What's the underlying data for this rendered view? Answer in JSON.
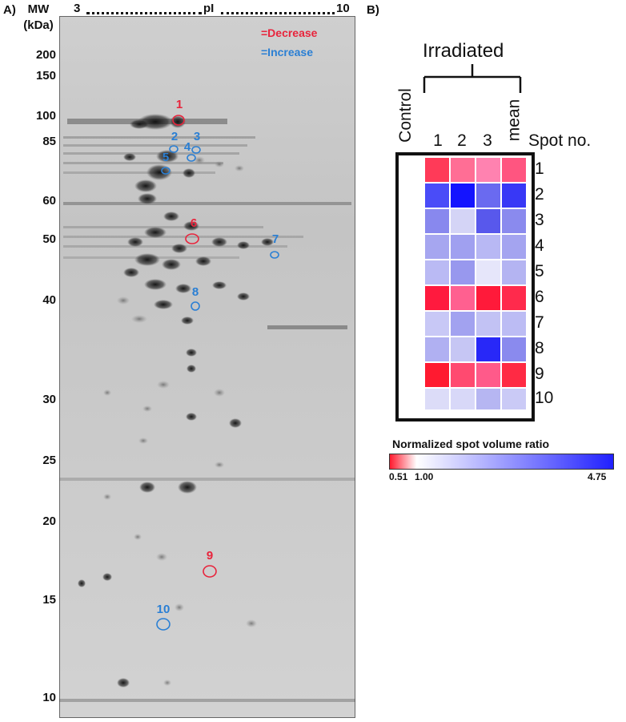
{
  "panel_a": {
    "label": "A)",
    "mw_title_line1": "MW",
    "mw_title_line2": "(kDa)",
    "mw_ticks": [
      {
        "label": "200",
        "kda": 200
      },
      {
        "label": "150",
        "kda": 150
      },
      {
        "label": "100",
        "kda": 100
      },
      {
        "label": "85",
        "kda": 85
      },
      {
        "label": "60",
        "kda": 60
      },
      {
        "label": "50",
        "kda": 50
      },
      {
        "label": "40",
        "kda": 40
      },
      {
        "label": "30",
        "kda": 30
      },
      {
        "label": "25",
        "kda": 25
      },
      {
        "label": "20",
        "kda": 20
      },
      {
        "label": "15",
        "kda": 15
      },
      {
        "label": "10",
        "kda": 10
      }
    ],
    "pi_axis": {
      "start": "3",
      "middle": "pI",
      "end": "10"
    },
    "legend": {
      "decrease_label": "=Decrease",
      "decrease_color": "#e8243c",
      "increase_label": "=Increase",
      "increase_color": "#2a7fd4"
    },
    "spots": [
      {
        "label": "1",
        "change": "decrease"
      },
      {
        "label": "2",
        "change": "increase"
      },
      {
        "label": "3",
        "change": "increase"
      },
      {
        "label": "4",
        "change": "increase"
      },
      {
        "label": "5",
        "change": "increase"
      },
      {
        "label": "6",
        "change": "decrease"
      },
      {
        "label": "7",
        "change": "increase"
      },
      {
        "label": "8",
        "change": "increase"
      },
      {
        "label": "9",
        "change": "decrease"
      },
      {
        "label": "10",
        "change": "increase"
      }
    ]
  },
  "panel_b": {
    "label": "B)",
    "group_label": "Irradiated",
    "control_label": "Control",
    "columns": [
      "1",
      "2",
      "3",
      "mean"
    ],
    "spot_header": "Spot no.",
    "rows": [
      "1",
      "2",
      "3",
      "4",
      "5",
      "6",
      "7",
      "8",
      "9",
      "10"
    ],
    "colorbar": {
      "title": "Normalized spot volume ratio",
      "min_label": "0.51",
      "mid_label": "1.00",
      "max_label": "4.75",
      "low_color": "#ff1a2e",
      "mid_color": "#ffffff",
      "high_color": "#2020ff"
    }
  }
}
